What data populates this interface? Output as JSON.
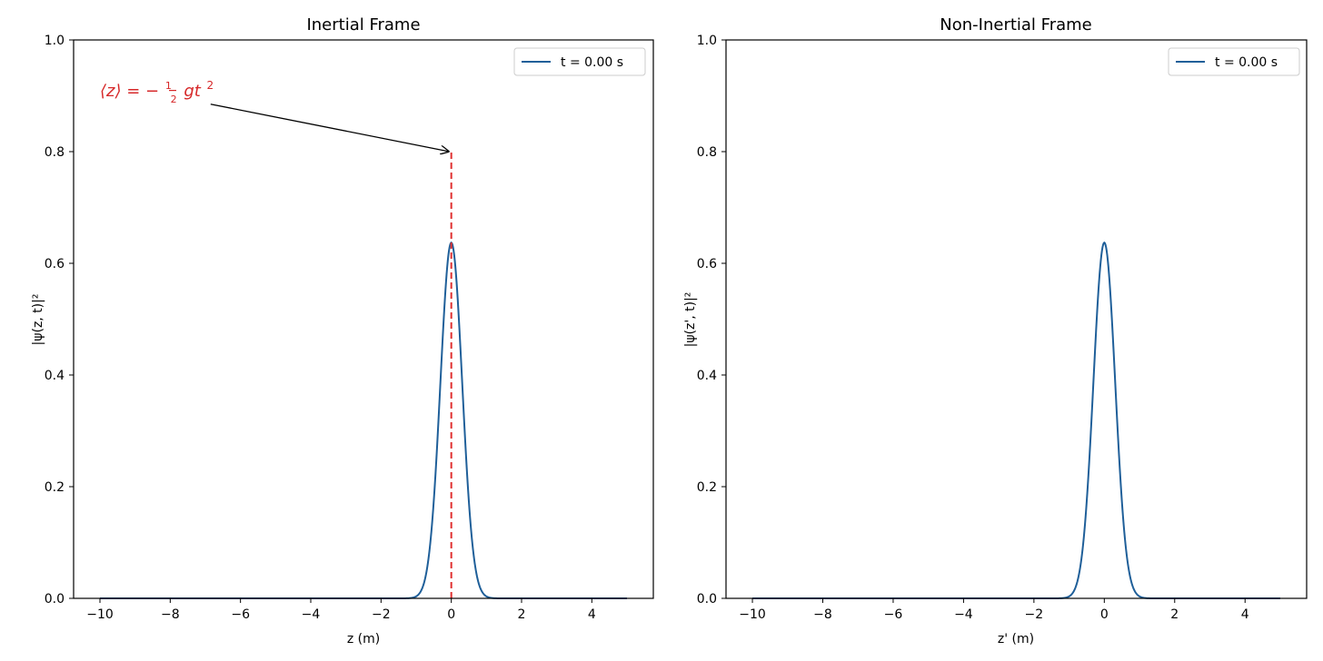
{
  "colors": {
    "curve": "#1f5f99",
    "marker": "#e03030",
    "axis": "#000000",
    "annotation_text": "#d62728"
  },
  "chart_data": [
    {
      "type": "line",
      "title": "Inertial Frame",
      "xlabel": "z (m)",
      "ylabel": "|ψ(z, t)|²",
      "xlim": [
        -10.75,
        5.75
      ],
      "ylim": [
        0.0,
        1.0
      ],
      "xticks": [
        -10,
        -8,
        -6,
        -4,
        -2,
        0,
        2,
        4
      ],
      "xtick_labels": [
        "−10",
        "−8",
        "−6",
        "−4",
        "−2",
        "0",
        "2",
        "4"
      ],
      "yticks": [
        0.0,
        0.2,
        0.4,
        0.6,
        0.8,
        1.0
      ],
      "ytick_labels": [
        "0.0",
        "0.2",
        "0.4",
        "0.6",
        "0.8",
        "1.0"
      ],
      "grid": false,
      "legend_position": "top-right",
      "series": [
        {
          "name": "t = 0.00 s",
          "kind": "gaussian",
          "x_range": [
            -10,
            5
          ],
          "center": 0.0,
          "peak": 0.637,
          "sigma": 0.31
        }
      ],
      "vertical_line": {
        "x": 0.0,
        "y_range": [
          0.0,
          0.8
        ],
        "style": "dashed"
      },
      "annotation": {
        "text_main": "⟨z⟩ = −",
        "text_frac_num": "1",
        "text_frac_den": "2",
        "text_tail": "gt",
        "text_exp": "2",
        "text_at": [
          -10.0,
          0.895
        ],
        "arrow_from": [
          -6.85,
          0.885
        ],
        "arrow_to": [
          0.0,
          0.8
        ]
      }
    },
    {
      "type": "line",
      "title": "Non-Inertial Frame",
      "xlabel": "z' (m)",
      "ylabel": "|ψ(z', t)|²",
      "xlim": [
        -10.75,
        5.75
      ],
      "ylim": [
        0.0,
        1.0
      ],
      "xticks": [
        -10,
        -8,
        -6,
        -4,
        -2,
        0,
        2,
        4
      ],
      "xtick_labels": [
        "−10",
        "−8",
        "−6",
        "−4",
        "−2",
        "0",
        "2",
        "4"
      ],
      "yticks": [
        0.0,
        0.2,
        0.4,
        0.6,
        0.8,
        1.0
      ],
      "ytick_labels": [
        "0.0",
        "0.2",
        "0.4",
        "0.6",
        "0.8",
        "1.0"
      ],
      "grid": false,
      "legend_position": "top-right",
      "series": [
        {
          "name": "t = 0.00 s",
          "kind": "gaussian",
          "x_range": [
            -10,
            5
          ],
          "center": 0.0,
          "peak": 0.637,
          "sigma": 0.31
        }
      ]
    }
  ]
}
